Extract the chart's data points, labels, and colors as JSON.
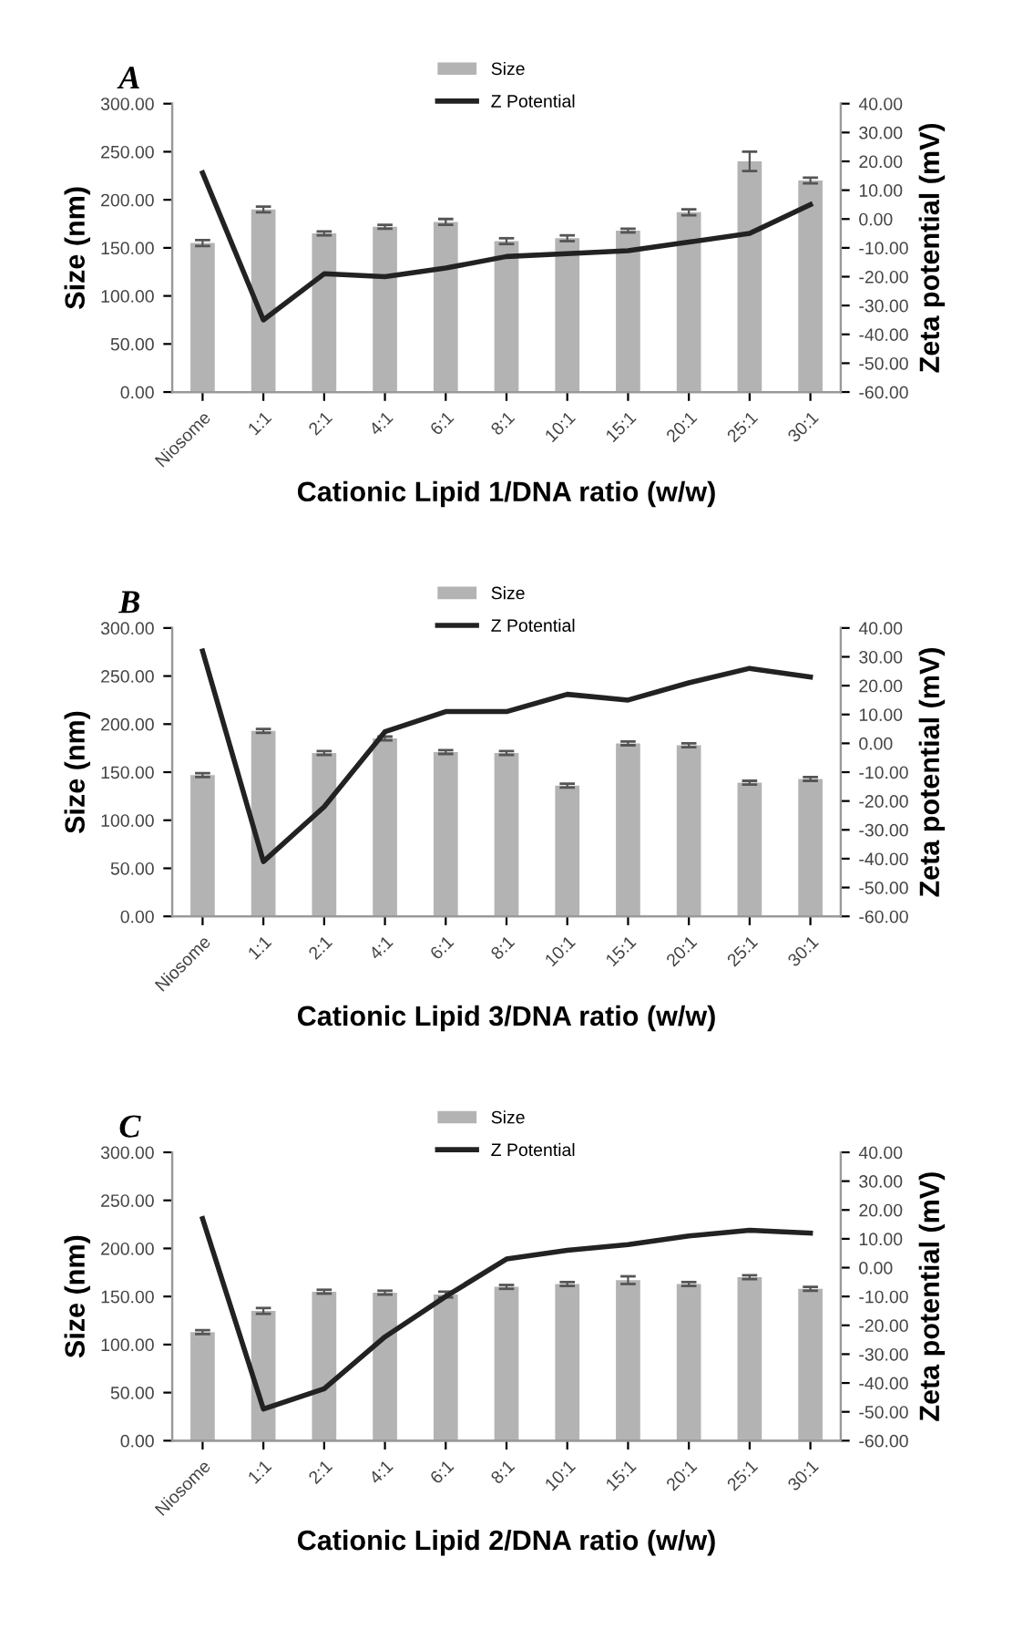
{
  "chart_data": [
    {
      "type": "bar",
      "title": "A",
      "categories": [
        "Niosome",
        "1:1",
        "2:1",
        "4:1",
        "6:1",
        "8:1",
        "10:1",
        "15:1",
        "20:1",
        "25:1",
        "30:1"
      ],
      "xlabel": "Cationic Lipid 1/DNA ratio (w/w)",
      "ylabel": "Size (nm)",
      "y2label": "Zeta potential (mV)",
      "legend": "top",
      "grid": false,
      "series": [
        {
          "name": "Size",
          "color": "#b3b3b3",
          "values": [
            155,
            190,
            165,
            172,
            177,
            157,
            160,
            168,
            187,
            240,
            220
          ],
          "errors": [
            3,
            3,
            2,
            2,
            3,
            3,
            3,
            2,
            3,
            10,
            3
          ]
        },
        {
          "name": "Z Potential",
          "type": "line",
          "axis": "y2",
          "color": "#222222",
          "values": [
            16,
            -35,
            -19,
            -20,
            -17,
            -13,
            -12,
            -11,
            -8,
            -5,
            5
          ]
        }
      ],
      "ylim": [
        0,
        300
      ],
      "yticks": [
        {
          "value": 0,
          "label": "0.00"
        },
        {
          "value": 50,
          "label": "50.00"
        },
        {
          "value": 100,
          "label": "100.00"
        },
        {
          "value": 150,
          "label": "150.00"
        },
        {
          "value": 200,
          "label": "200.00"
        },
        {
          "value": 250,
          "label": "250.00"
        },
        {
          "value": 300,
          "label": "300.00"
        }
      ],
      "y2lim": [
        -60,
        40
      ],
      "y2ticks": [
        {
          "value": -60,
          "label": "-60.00"
        },
        {
          "value": -50,
          "label": "-50.00"
        },
        {
          "value": -40,
          "label": "-40.00"
        },
        {
          "value": -30,
          "label": "-30.00"
        },
        {
          "value": -20,
          "label": "-20.00"
        },
        {
          "value": -10,
          "label": "-10.00"
        },
        {
          "value": 0,
          "label": "0.00"
        },
        {
          "value": 10,
          "label": "10.00"
        },
        {
          "value": 20,
          "label": "20.00"
        },
        {
          "value": 30,
          "label": "30.00"
        },
        {
          "value": 40,
          "label": "40.00"
        }
      ]
    },
    {
      "type": "bar",
      "title": "B",
      "categories": [
        "Niosome",
        "1:1",
        "2:1",
        "4:1",
        "6:1",
        "8:1",
        "10:1",
        "15:1",
        "20:1",
        "25:1",
        "30:1"
      ],
      "xlabel": "Cationic Lipid 3/DNA ratio (w/w)",
      "ylabel": "Size (nm)",
      "y2label": "Zeta potential (mV)",
      "legend": "top",
      "grid": false,
      "series": [
        {
          "name": "Size",
          "color": "#b3b3b3",
          "values": [
            147,
            193,
            170,
            185,
            171,
            170,
            136,
            180,
            178,
            139,
            143
          ],
          "errors": [
            2,
            2,
            2,
            2,
            2,
            2,
            2,
            2,
            2,
            2,
            2
          ]
        },
        {
          "name": "Z Potential",
          "type": "line",
          "axis": "y2",
          "color": "#222222",
          "values": [
            32,
            -41,
            -22,
            4,
            11,
            11,
            17,
            15,
            21,
            26,
            23
          ]
        }
      ],
      "ylim": [
        0,
        300
      ],
      "yticks": [
        {
          "value": 0,
          "label": "0.00"
        },
        {
          "value": 50,
          "label": "50.00"
        },
        {
          "value": 100,
          "label": "100.00"
        },
        {
          "value": 150,
          "label": "150.00"
        },
        {
          "value": 200,
          "label": "200.00"
        },
        {
          "value": 250,
          "label": "250.00"
        },
        {
          "value": 300,
          "label": "300.00"
        }
      ],
      "y2lim": [
        -60,
        40
      ],
      "y2ticks": [
        {
          "value": -60,
          "label": "-60.00"
        },
        {
          "value": -50,
          "label": "-50.00"
        },
        {
          "value": -40,
          "label": "-40.00"
        },
        {
          "value": -30,
          "label": "-30.00"
        },
        {
          "value": -20,
          "label": "-20.00"
        },
        {
          "value": -10,
          "label": "-10.00"
        },
        {
          "value": 0,
          "label": "0.00"
        },
        {
          "value": 10,
          "label": "10.00"
        },
        {
          "value": 20,
          "label": "20.00"
        },
        {
          "value": 30,
          "label": "30.00"
        },
        {
          "value": 40,
          "label": "40.00"
        }
      ]
    },
    {
      "type": "bar",
      "title": "C",
      "categories": [
        "Niosome",
        "1:1",
        "2:1",
        "4:1",
        "6:1",
        "8:1",
        "10:1",
        "15:1",
        "20:1",
        "25:1",
        "30:1"
      ],
      "xlabel": "Cationic Lipid 2/DNA ratio (w/w)",
      "ylabel": "Size (nm)",
      "y2label": "Zeta potential (mV)",
      "legend": "top",
      "grid": false,
      "series": [
        {
          "name": "Size",
          "color": "#b3b3b3",
          "values": [
            113,
            135,
            155,
            154,
            152,
            160,
            163,
            167,
            163,
            170,
            158
          ],
          "errors": [
            2,
            3,
            2,
            2,
            3,
            2,
            2,
            4,
            2,
            2,
            2
          ]
        },
        {
          "name": "Z Potential",
          "type": "line",
          "axis": "y2",
          "color": "#222222",
          "values": [
            17,
            -49,
            -42,
            -24,
            -10,
            3,
            6,
            8,
            11,
            13,
            12
          ]
        }
      ],
      "ylim": [
        0,
        300
      ],
      "yticks": [
        {
          "value": 0,
          "label": "0.00"
        },
        {
          "value": 50,
          "label": "50.00"
        },
        {
          "value": 100,
          "label": "100.00"
        },
        {
          "value": 150,
          "label": "150.00"
        },
        {
          "value": 200,
          "label": "200.00"
        },
        {
          "value": 250,
          "label": "250.00"
        },
        {
          "value": 300,
          "label": "300.00"
        }
      ],
      "y2lim": [
        -60,
        40
      ],
      "y2ticks": [
        {
          "value": -60,
          "label": "-60.00"
        },
        {
          "value": -50,
          "label": "-50.00"
        },
        {
          "value": -40,
          "label": "-40.00"
        },
        {
          "value": -30,
          "label": "-30.00"
        },
        {
          "value": -20,
          "label": "-20.00"
        },
        {
          "value": -10,
          "label": "-10.00"
        },
        {
          "value": 0,
          "label": "0.00"
        },
        {
          "value": 10,
          "label": "10.00"
        },
        {
          "value": 20,
          "label": "20.00"
        },
        {
          "value": 30,
          "label": "30.00"
        },
        {
          "value": 40,
          "label": "40.00"
        }
      ]
    }
  ]
}
